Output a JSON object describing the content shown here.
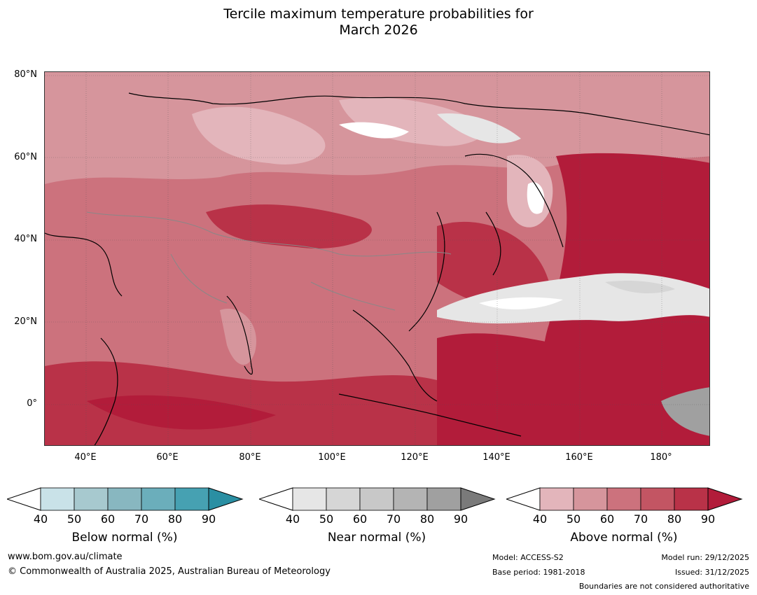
{
  "title": {
    "line1": "Tercile maximum temperature probabilities for",
    "line2": "March 2026"
  },
  "map": {
    "lon_range": [
      30,
      192
    ],
    "lat_range": [
      -10,
      81
    ],
    "lat_ticks": [
      "80°N",
      "60°N",
      "40°N",
      "20°N",
      "0°"
    ],
    "lon_ticks": [
      "40°E",
      "60°E",
      "80°E",
      "100°E",
      "120°E",
      "140°E",
      "160°E",
      "180°"
    ]
  },
  "colorbars": [
    {
      "label": "Below normal (%)",
      "ticks": [
        "40",
        "50",
        "60",
        "70",
        "80",
        "90"
      ],
      "colors": [
        "#c9e2e8",
        "#a7c9cf",
        "#88b7c0",
        "#6baebb",
        "#46a1b2",
        "#2a8fa3"
      ]
    },
    {
      "label": "Near normal (%)",
      "ticks": [
        "40",
        "50",
        "60",
        "70",
        "80",
        "90"
      ],
      "colors": [
        "#e6e6e6",
        "#d6d6d6",
        "#c8c8c8",
        "#b4b4b4",
        "#a0a0a0",
        "#7a7a7a"
      ]
    },
    {
      "label": "Above normal (%)",
      "ticks": [
        "40",
        "50",
        "60",
        "70",
        "80",
        "90"
      ],
      "colors": [
        "#e3b5bb",
        "#d6959c",
        "#cc727d",
        "#c35563",
        "#b93248",
        "#b21c3a"
      ]
    }
  ],
  "footer": {
    "website": "www.bom.gov.au/climate",
    "copyright": "© Commonwealth of Australia 2025, Australian Bureau of Meteorology",
    "model": "Model: ACCESS-S2",
    "base_period": "Base period: 1981-2018",
    "model_run": "Model run: 29/12/2025",
    "issued": "Issued: 31/12/2025",
    "boundaries": "Boundaries are not considered authoritative"
  }
}
